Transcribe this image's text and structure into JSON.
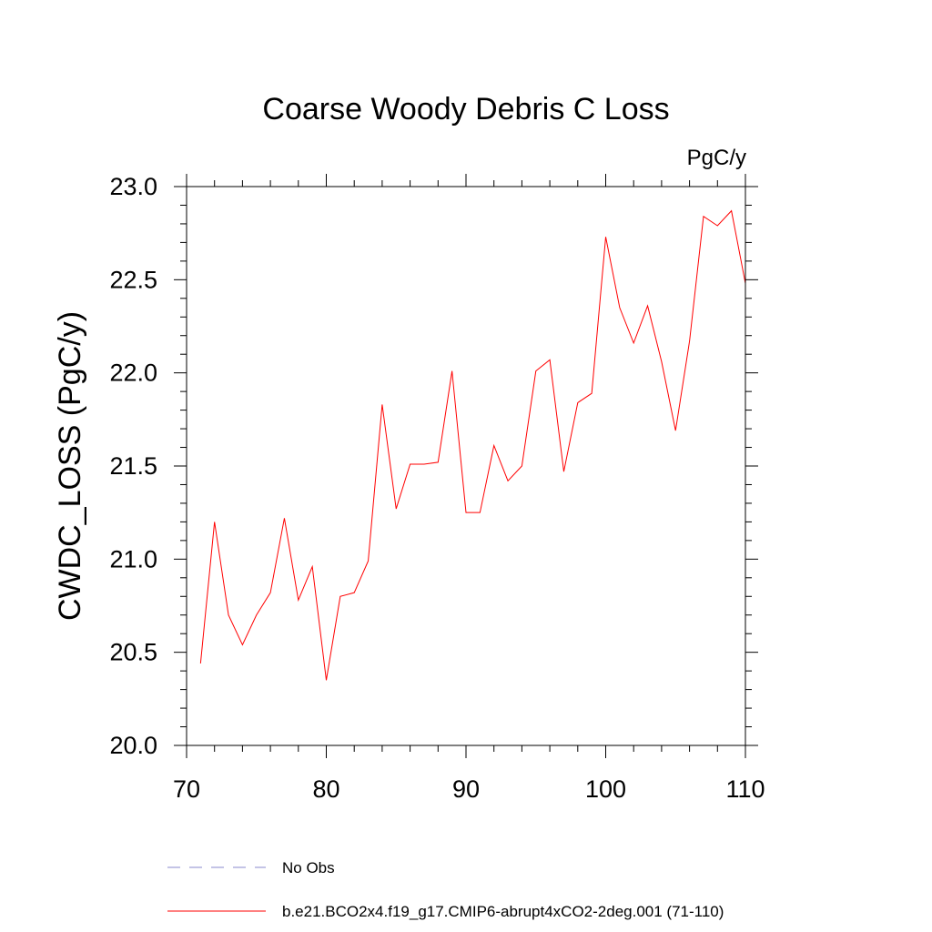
{
  "chart_data": {
    "type": "line",
    "title": "Coarse Woody Debris C Loss",
    "units": "PgC/y",
    "xlabel": "",
    "ylabel": "CWDC_LOSS  (PgC/y)",
    "xlim": [
      70,
      110
    ],
    "ylim": [
      20.0,
      23.0
    ],
    "x_ticks": [
      70,
      80,
      90,
      100,
      110
    ],
    "x_tick_labels": [
      "70",
      "80",
      "90",
      "100",
      "110"
    ],
    "y_ticks": [
      20.0,
      20.5,
      21.0,
      21.5,
      22.0,
      22.5,
      23.0
    ],
    "y_tick_labels": [
      "20.0",
      "20.5",
      "21.0",
      "21.5",
      "22.0",
      "22.5",
      "23.0"
    ],
    "x_minor_step": 2,
    "y_minor_step": 0.1,
    "grid": false,
    "legend_position": "bottom-left",
    "series": [
      {
        "name": "b.e21.BCO2x4.f19_g17.CMIP6-abrupt4xCO2-2deg.001 (71-110)",
        "color": "#ff0000",
        "style": "solid",
        "x": [
          71,
          72,
          73,
          74,
          75,
          76,
          77,
          78,
          79,
          80,
          81,
          82,
          83,
          84,
          85,
          86,
          87,
          88,
          89,
          90,
          91,
          92,
          93,
          94,
          95,
          96,
          97,
          98,
          99,
          100,
          101,
          102,
          103,
          104,
          105,
          106,
          107,
          108,
          109,
          110
        ],
        "values": [
          20.44,
          21.2,
          20.7,
          20.54,
          20.7,
          20.82,
          21.22,
          20.78,
          20.96,
          20.35,
          20.8,
          20.82,
          20.99,
          21.83,
          21.27,
          21.51,
          21.51,
          21.52,
          22.01,
          21.25,
          21.25,
          21.61,
          21.42,
          21.5,
          22.01,
          22.07,
          21.47,
          21.84,
          21.89,
          22.73,
          22.35,
          22.16,
          22.36,
          22.06,
          21.69,
          22.17,
          22.84,
          22.79,
          22.87,
          22.48
        ]
      }
    ],
    "legend": [
      {
        "label": "No Obs",
        "color": "#8888cc",
        "style": "dashed"
      },
      {
        "label": "b.e21.BCO2x4.f19_g17.CMIP6-abrupt4xCO2-2deg.001 (71-110)",
        "color": "#ff0000",
        "style": "solid"
      }
    ]
  }
}
